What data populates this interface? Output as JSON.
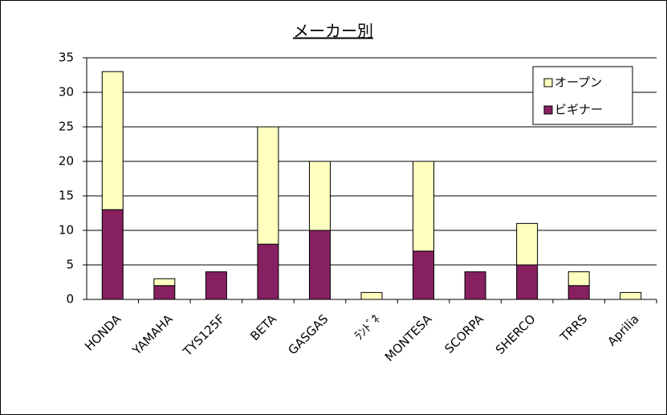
{
  "chart_data": {
    "type": "bar",
    "stacked": true,
    "title": "メーカー別",
    "categories": [
      "HONDA",
      "YAMAHA",
      "TYS125F",
      "BETA",
      "GASGAS",
      "ﾗﾝﾄﾞﾈ",
      "MONTESA",
      "SCORPA",
      "SHERCO",
      "TRRS",
      "Aprilia"
    ],
    "series": [
      {
        "name": "オープン",
        "color": "#ffffc0",
        "values": [
          20,
          1,
          0,
          17,
          10,
          1,
          13,
          0,
          6,
          2,
          1
        ]
      },
      {
        "name": "ビギナー",
        "color": "#862060",
        "values": [
          13,
          2,
          4,
          8,
          10,
          0,
          7,
          4,
          5,
          2,
          0
        ]
      }
    ],
    "ylim": [
      0,
      35
    ],
    "yticks": [
      0,
      5,
      10,
      15,
      20,
      25,
      30,
      35
    ],
    "grid": true,
    "legend": "top-right"
  }
}
